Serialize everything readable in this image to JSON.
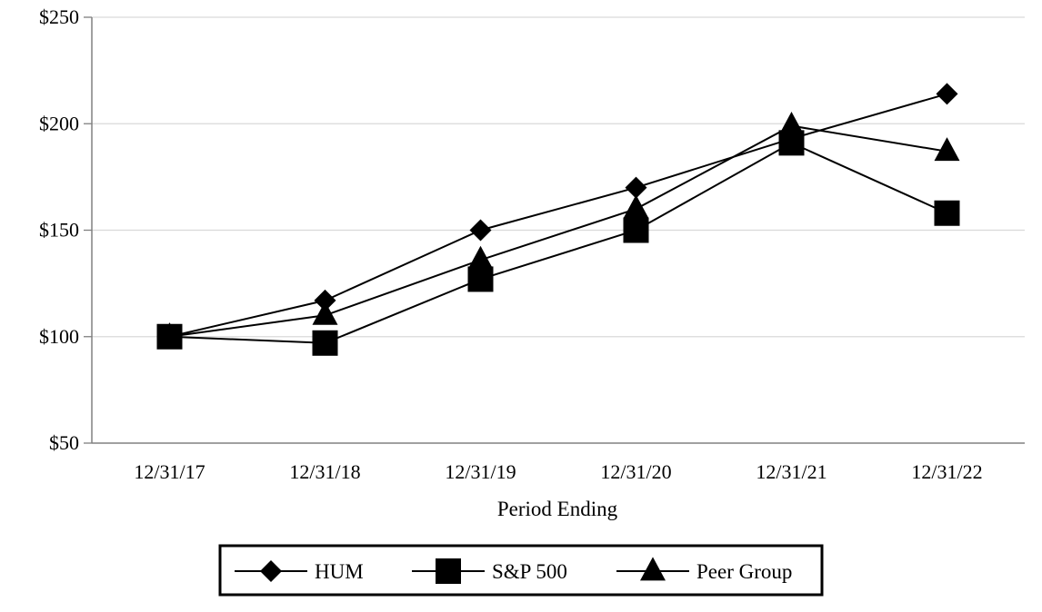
{
  "chart_data": {
    "type": "line",
    "title": "",
    "xlabel": "Period Ending",
    "ylabel": "",
    "categories": [
      "12/31/17",
      "12/31/18",
      "12/31/19",
      "12/31/20",
      "12/31/21",
      "12/31/22"
    ],
    "ylim": [
      50,
      250
    ],
    "yticks": [
      50,
      100,
      150,
      200,
      250
    ],
    "ytick_labels": [
      "$50",
      "$100",
      "$150",
      "$200",
      "$250"
    ],
    "grid": "horizontal",
    "legend_position": "bottom",
    "series": [
      {
        "name": "HUM",
        "marker": "diamond",
        "values": [
          100,
          117,
          150,
          170,
          193,
          214
        ]
      },
      {
        "name": "S&P 500",
        "marker": "square",
        "values": [
          100,
          97,
          127,
          150,
          191,
          158
        ]
      },
      {
        "name": "Peer Group",
        "marker": "triangle",
        "values": [
          100,
          110,
          136,
          160,
          199,
          187
        ]
      }
    ],
    "colors": {
      "line": "#000000",
      "grid": "#d9d9d9",
      "axis": "#808080"
    }
  }
}
